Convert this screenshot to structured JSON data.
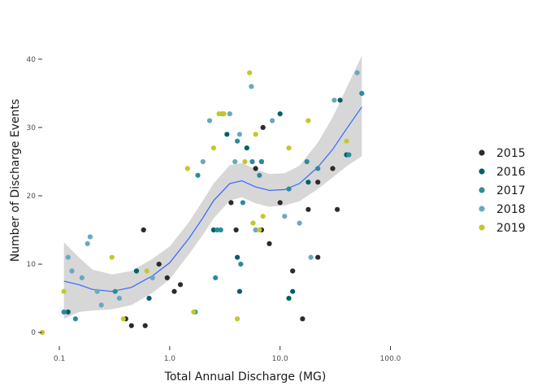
{
  "chart_data": {
    "type": "scatter",
    "xlabel": "Total Annual Discharge (MG)",
    "ylabel": "Number of Discharge Events",
    "x_scale": "log10",
    "xlim": [
      0.07,
      130
    ],
    "ylim": [
      -2,
      42
    ],
    "x_ticks": [
      {
        "value": 0.1,
        "label": "0.1"
      },
      {
        "value": 1,
        "label": "1.0"
      },
      {
        "value": 10,
        "label": "10.0"
      },
      {
        "value": 100,
        "label": "100.0"
      }
    ],
    "y_ticks": [
      {
        "value": 0,
        "label": "0"
      },
      {
        "value": 10,
        "label": "10"
      },
      {
        "value": 20,
        "label": "20"
      },
      {
        "value": 30,
        "label": "30"
      },
      {
        "value": 40,
        "label": "40"
      }
    ],
    "grid": false,
    "legend_position": "right",
    "smooth_color": "#3366ff",
    "band_color": "#d3d3d3",
    "series": [
      {
        "name": "2015",
        "color": "#2b2b2b",
        "points": [
          {
            "x": 0.4,
            "y": 2
          },
          {
            "x": 0.45,
            "y": 1
          },
          {
            "x": 0.58,
            "y": 15
          },
          {
            "x": 0.6,
            "y": 1
          },
          {
            "x": 0.8,
            "y": 10
          },
          {
            "x": 0.95,
            "y": 8
          },
          {
            "x": 1.1,
            "y": 6
          },
          {
            "x": 1.25,
            "y": 7
          },
          {
            "x": 3.6,
            "y": 19
          },
          {
            "x": 4.0,
            "y": 15
          },
          {
            "x": 6.0,
            "y": 24
          },
          {
            "x": 6.8,
            "y": 15
          },
          {
            "x": 7.0,
            "y": 30
          },
          {
            "x": 8.0,
            "y": 13
          },
          {
            "x": 10.0,
            "y": 19
          },
          {
            "x": 13.0,
            "y": 9
          },
          {
            "x": 16.0,
            "y": 2
          },
          {
            "x": 18.0,
            "y": 18
          },
          {
            "x": 22.0,
            "y": 11
          },
          {
            "x": 22.0,
            "y": 22
          },
          {
            "x": 30.0,
            "y": 24
          },
          {
            "x": 33.0,
            "y": 18
          }
        ]
      },
      {
        "name": "2016",
        "color": "#00606b",
        "points": [
          {
            "x": 0.12,
            "y": 3
          },
          {
            "x": 0.5,
            "y": 9
          },
          {
            "x": 0.65,
            "y": 5
          },
          {
            "x": 2.5,
            "y": 15
          },
          {
            "x": 3.3,
            "y": 29
          },
          {
            "x": 4.1,
            "y": 11
          },
          {
            "x": 4.3,
            "y": 6
          },
          {
            "x": 5.0,
            "y": 27
          },
          {
            "x": 6.8,
            "y": 25
          },
          {
            "x": 10.0,
            "y": 32
          },
          {
            "x": 12.0,
            "y": 5
          },
          {
            "x": 13.0,
            "y": 6
          },
          {
            "x": 18.0,
            "y": 22
          },
          {
            "x": 35.0,
            "y": 34
          },
          {
            "x": 40.0,
            "y": 26
          }
        ]
      },
      {
        "name": "2017",
        "color": "#2a8c9c",
        "points": [
          {
            "x": 0.11,
            "y": 3
          },
          {
            "x": 0.14,
            "y": 2
          },
          {
            "x": 0.32,
            "y": 6
          },
          {
            "x": 1.7,
            "y": 3
          },
          {
            "x": 1.8,
            "y": 23
          },
          {
            "x": 2.6,
            "y": 8
          },
          {
            "x": 2.7,
            "y": 15
          },
          {
            "x": 2.9,
            "y": 15
          },
          {
            "x": 4.1,
            "y": 28
          },
          {
            "x": 4.4,
            "y": 10
          },
          {
            "x": 4.6,
            "y": 19
          },
          {
            "x": 5.6,
            "y": 25
          },
          {
            "x": 6.5,
            "y": 23
          },
          {
            "x": 6.8,
            "y": 25
          },
          {
            "x": 12.0,
            "y": 21
          },
          {
            "x": 17.5,
            "y": 25
          },
          {
            "x": 22.0,
            "y": 24
          },
          {
            "x": 42.0,
            "y": 26
          },
          {
            "x": 55.0,
            "y": 35
          }
        ]
      },
      {
        "name": "2018",
        "color": "#6aa8bd",
        "points": [
          {
            "x": 0.12,
            "y": 11
          },
          {
            "x": 0.13,
            "y": 9
          },
          {
            "x": 0.16,
            "y": 8
          },
          {
            "x": 0.18,
            "y": 13
          },
          {
            "x": 0.19,
            "y": 14
          },
          {
            "x": 0.22,
            "y": 6
          },
          {
            "x": 0.24,
            "y": 4
          },
          {
            "x": 0.35,
            "y": 5
          },
          {
            "x": 0.7,
            "y": 8
          },
          {
            "x": 2.0,
            "y": 25
          },
          {
            "x": 2.3,
            "y": 31
          },
          {
            "x": 3.0,
            "y": 32
          },
          {
            "x": 3.5,
            "y": 32
          },
          {
            "x": 3.9,
            "y": 25
          },
          {
            "x": 4.3,
            "y": 29
          },
          {
            "x": 5.5,
            "y": 36
          },
          {
            "x": 6.0,
            "y": 15
          },
          {
            "x": 8.5,
            "y": 31
          },
          {
            "x": 11.0,
            "y": 17
          },
          {
            "x": 15.0,
            "y": 16
          },
          {
            "x": 19.0,
            "y": 11
          },
          {
            "x": 31.0,
            "y": 34
          },
          {
            "x": 50.0,
            "y": 38
          }
        ]
      },
      {
        "name": "2019",
        "color": "#c3c82a",
        "points": [
          {
            "x": 0.07,
            "y": 0
          },
          {
            "x": 0.11,
            "y": 6
          },
          {
            "x": 0.3,
            "y": 11
          },
          {
            "x": 0.38,
            "y": 2
          },
          {
            "x": 0.62,
            "y": 9
          },
          {
            "x": 1.45,
            "y": 24
          },
          {
            "x": 1.65,
            "y": 3
          },
          {
            "x": 2.5,
            "y": 27
          },
          {
            "x": 2.8,
            "y": 32
          },
          {
            "x": 3.1,
            "y": 32
          },
          {
            "x": 4.1,
            "y": 2
          },
          {
            "x": 4.8,
            "y": 25
          },
          {
            "x": 5.3,
            "y": 38
          },
          {
            "x": 5.7,
            "y": 16
          },
          {
            "x": 6.0,
            "y": 29
          },
          {
            "x": 6.5,
            "y": 15
          },
          {
            "x": 7.0,
            "y": 17
          },
          {
            "x": 12.0,
            "y": 27
          },
          {
            "x": 18.0,
            "y": 31
          },
          {
            "x": 40.0,
            "y": 28
          }
        ]
      }
    ],
    "smooth_fit": [
      {
        "x": 0.11,
        "y": 7.5,
        "lo": 2.0,
        "hi": 13.2
      },
      {
        "x": 0.15,
        "y": 7.0,
        "lo": 3.0,
        "hi": 11.0
      },
      {
        "x": 0.2,
        "y": 6.3,
        "lo": 3.2,
        "hi": 9.2
      },
      {
        "x": 0.3,
        "y": 6.0,
        "lo": 3.4,
        "hi": 8.5
      },
      {
        "x": 0.45,
        "y": 6.6,
        "lo": 4.0,
        "hi": 9.0
      },
      {
        "x": 0.7,
        "y": 8.3,
        "lo": 5.8,
        "hi": 10.8
      },
      {
        "x": 1.0,
        "y": 10.2,
        "lo": 7.8,
        "hi": 12.6
      },
      {
        "x": 1.5,
        "y": 13.8,
        "lo": 11.5,
        "hi": 16.2
      },
      {
        "x": 2.0,
        "y": 16.8,
        "lo": 14.3,
        "hi": 19.3
      },
      {
        "x": 2.5,
        "y": 19.3,
        "lo": 16.7,
        "hi": 21.8
      },
      {
        "x": 3.5,
        "y": 21.8,
        "lo": 19.3,
        "hi": 24.5
      },
      {
        "x": 4.5,
        "y": 22.2,
        "lo": 19.8,
        "hi": 24.8
      },
      {
        "x": 6.0,
        "y": 21.3,
        "lo": 18.9,
        "hi": 23.9
      },
      {
        "x": 8.0,
        "y": 20.8,
        "lo": 18.4,
        "hi": 23.2
      },
      {
        "x": 11.0,
        "y": 20.9,
        "lo": 18.6,
        "hi": 23.3
      },
      {
        "x": 15.0,
        "y": 21.8,
        "lo": 19.2,
        "hi": 24.4
      },
      {
        "x": 22.0,
        "y": 24.2,
        "lo": 21.0,
        "hi": 27.8
      },
      {
        "x": 30.0,
        "y": 26.8,
        "lo": 22.7,
        "hi": 31.5
      },
      {
        "x": 40.0,
        "y": 29.8,
        "lo": 24.3,
        "hi": 35.8
      },
      {
        "x": 55.0,
        "y": 33.0,
        "lo": 25.8,
        "hi": 40.5
      }
    ]
  }
}
